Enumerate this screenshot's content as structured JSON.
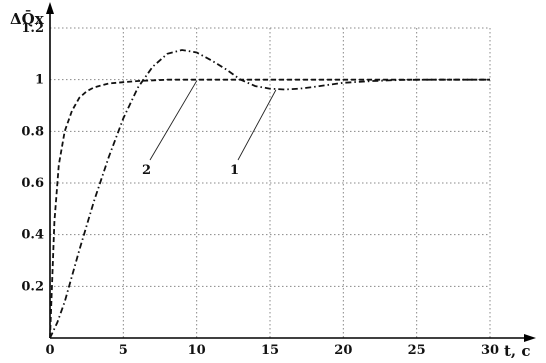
{
  "chart_data": {
    "type": "line",
    "ylabel": "ΔQ̄x",
    "xlabel": "t, c",
    "xlim": [
      0,
      30
    ],
    "ylim": [
      0,
      1.2
    ],
    "grid": true,
    "x_ticks": [
      0,
      5,
      10,
      15,
      20,
      25,
      30
    ],
    "y_ticks": [
      0.2,
      0.4,
      0.6,
      0.8,
      1,
      1.2
    ],
    "series": [
      {
        "name": "1",
        "style": "dash-dot",
        "x": [
          0,
          0.5,
          1,
          2,
          3,
          4,
          5,
          6,
          7,
          8,
          9,
          10,
          11,
          12,
          13,
          14,
          15,
          16,
          17,
          18,
          19,
          20,
          22,
          24,
          26,
          28,
          30
        ],
        "y": [
          0,
          0.06,
          0.14,
          0.34,
          0.53,
          0.7,
          0.85,
          0.97,
          1.05,
          1.1,
          1.115,
          1.105,
          1.075,
          1.04,
          1.0,
          0.975,
          0.965,
          0.962,
          0.965,
          0.972,
          0.98,
          0.988,
          0.995,
          0.999,
          1.0,
          1.0,
          1.0
        ]
      },
      {
        "name": "2",
        "style": "dashed",
        "x": [
          0,
          0.3,
          0.6,
          1,
          1.5,
          2,
          2.5,
          3,
          4,
          5,
          6,
          8,
          10,
          15,
          20,
          25,
          30
        ],
        "y": [
          0,
          0.45,
          0.67,
          0.8,
          0.88,
          0.93,
          0.955,
          0.97,
          0.985,
          0.99,
          0.995,
          1.0,
          1.0,
          1.0,
          1.0,
          1.0,
          1.0
        ]
      }
    ],
    "annotations": [
      {
        "text": "1",
        "x": 15.4,
        "y": 0.96
      },
      {
        "text": "2",
        "x": 10.0,
        "y": 0.995
      }
    ]
  }
}
